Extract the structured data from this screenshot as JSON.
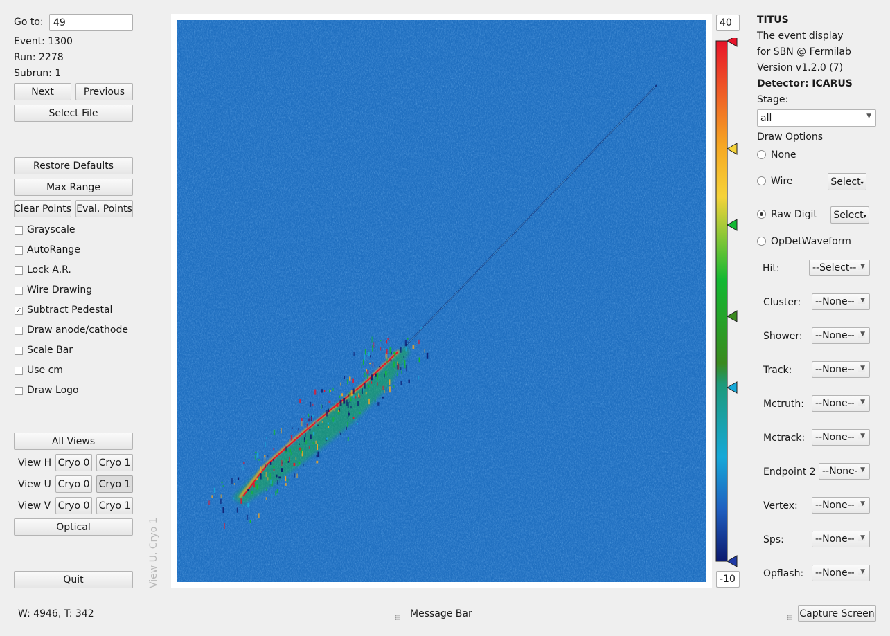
{
  "nav": {
    "goto_label": "Go to:",
    "goto_value": "49",
    "event": "Event: 1300",
    "run": "Run: 2278",
    "subrun": "Subrun: 1",
    "next": "Next",
    "previous": "Previous",
    "select_file": "Select File"
  },
  "controls": {
    "restore_defaults": "Restore Defaults",
    "max_range": "Max Range",
    "clear_points": "Clear Points",
    "eval_points": "Eval. Points",
    "checkboxes": [
      {
        "label": "Grayscale",
        "checked": false
      },
      {
        "label": "AutoRange",
        "checked": false
      },
      {
        "label": "Lock A.R.",
        "checked": false
      },
      {
        "label": "Wire Drawing",
        "checked": false
      },
      {
        "label": "Subtract Pedestal",
        "checked": true
      },
      {
        "label": "Draw anode/cathode",
        "checked": false
      },
      {
        "label": "Scale Bar",
        "checked": false
      },
      {
        "label": "Use cm",
        "checked": false
      },
      {
        "label": "Draw Logo",
        "checked": false
      }
    ]
  },
  "views": {
    "all_views": "All Views",
    "rows": [
      {
        "label": "View H",
        "cryo0": "Cryo 0",
        "cryo1": "Cryo 1",
        "pressed": "none"
      },
      {
        "label": "View U",
        "cryo0": "Cryo 0",
        "cryo1": "Cryo 1",
        "pressed": "cryo1"
      },
      {
        "label": "View V",
        "cryo0": "Cryo 0",
        "cryo1": "Cryo 1",
        "pressed": "none"
      }
    ],
    "optical": "Optical",
    "quit": "Quit"
  },
  "plot": {
    "view_label": "View U, Cryo 1",
    "background_color": "#1f6fc0"
  },
  "colorbar": {
    "max": "40",
    "min": "-10",
    "stops": [
      "#e8142a",
      "#f5a623",
      "#f5d33a",
      "#12b832",
      "#3a8a1e",
      "#16a8d8",
      "#1f3aa6",
      "#0d1a6e"
    ]
  },
  "info": {
    "title": "TITUS",
    "line1": "The event display",
    "line2": "for SBN @ Fermilab",
    "version": "Version v1.2.0 (7)",
    "detector": "Detector: ICARUS",
    "stage_label": "Stage:",
    "stage_value": "all",
    "draw_options": "Draw Options"
  },
  "draw_options": {
    "none": "None",
    "wire": "Wire",
    "wire_select": "Select",
    "raw_digit": "Raw Digit",
    "raw_select": "Select",
    "opdet": "OpDetWaveform",
    "selected": "raw_digit"
  },
  "products": [
    {
      "label": "Hit:",
      "value": "--Select--"
    },
    {
      "label": "Cluster:",
      "value": "--None--"
    },
    {
      "label": "Shower:",
      "value": "--None--"
    },
    {
      "label": "Track:",
      "value": "--None--"
    },
    {
      "label": "Mctruth:",
      "value": "--None--"
    },
    {
      "label": "Mctrack:",
      "value": "--None--"
    },
    {
      "label": "Endpoint 2",
      "value": "--None--"
    },
    {
      "label": "Vertex:",
      "value": "--None--"
    },
    {
      "label": "Sps:",
      "value": "--None--"
    },
    {
      "label": "Opflash:",
      "value": "--None--"
    }
  ],
  "status": {
    "coords": "W: 4946, T: 342",
    "message": "Message Bar",
    "capture": "Capture Screen"
  }
}
